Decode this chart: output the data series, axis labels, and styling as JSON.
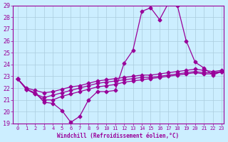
{
  "xlabel": "Windchill (Refroidissement éolien,°C)",
  "background_color": "#cceeff",
  "grid_color": "#aaccdd",
  "line_color": "#990099",
  "xlim": [
    0,
    23
  ],
  "ylim": [
    19,
    29
  ],
  "yticks": [
    19,
    20,
    21,
    22,
    23,
    24,
    25,
    26,
    27,
    28,
    29
  ],
  "xticks": [
    0,
    1,
    2,
    3,
    4,
    5,
    6,
    7,
    8,
    9,
    10,
    11,
    12,
    13,
    14,
    15,
    16,
    17,
    18,
    19,
    20,
    21,
    22,
    23
  ],
  "line1_x": [
    0,
    1,
    2,
    3,
    4,
    5,
    6,
    7,
    8,
    9,
    10,
    11,
    12,
    13,
    14,
    15,
    16,
    17,
    18,
    19,
    20,
    21,
    22,
    23
  ],
  "line1_y": [
    22.8,
    21.9,
    21.6,
    20.8,
    20.7,
    20.1,
    19.1,
    19.6,
    21.0,
    21.7,
    21.7,
    21.8,
    24.1,
    25.2,
    28.5,
    28.8,
    27.8,
    29.2,
    29.0,
    26.0,
    24.2,
    23.7,
    23.1,
    23.4
  ],
  "line2_x": [
    0,
    1,
    2,
    3,
    4,
    5,
    6,
    7,
    8,
    9,
    10,
    11,
    12,
    13,
    14,
    15,
    16,
    17,
    18,
    19,
    20,
    21,
    22,
    23
  ],
  "line2_y": [
    22.8,
    21.9,
    21.5,
    21.0,
    21.0,
    21.3,
    21.5,
    21.7,
    21.9,
    22.1,
    22.2,
    22.3,
    22.5,
    22.6,
    22.7,
    22.8,
    22.9,
    23.0,
    23.1,
    23.2,
    23.3,
    23.2,
    23.2,
    23.4
  ],
  "line3_x": [
    0,
    1,
    2,
    3,
    4,
    5,
    6,
    7,
    8,
    9,
    10,
    11,
    12,
    13,
    14,
    15,
    16,
    17,
    18,
    19,
    20,
    21,
    22,
    23
  ],
  "line3_y": [
    22.8,
    21.9,
    21.5,
    21.2,
    21.4,
    21.6,
    21.8,
    22.0,
    22.2,
    22.4,
    22.5,
    22.6,
    22.7,
    22.8,
    22.9,
    22.9,
    23.0,
    23.1,
    23.2,
    23.3,
    23.4,
    23.3,
    23.3,
    23.4
  ],
  "line4_x": [
    0,
    1,
    2,
    3,
    4,
    5,
    6,
    7,
    8,
    9,
    10,
    11,
    12,
    13,
    14,
    15,
    16,
    17,
    18,
    19,
    20,
    21,
    22,
    23
  ],
  "line4_y": [
    22.8,
    22.0,
    21.8,
    21.6,
    21.7,
    21.9,
    22.1,
    22.2,
    22.4,
    22.6,
    22.7,
    22.8,
    22.9,
    23.0,
    23.1,
    23.1,
    23.2,
    23.3,
    23.4,
    23.5,
    23.6,
    23.5,
    23.4,
    23.5
  ]
}
